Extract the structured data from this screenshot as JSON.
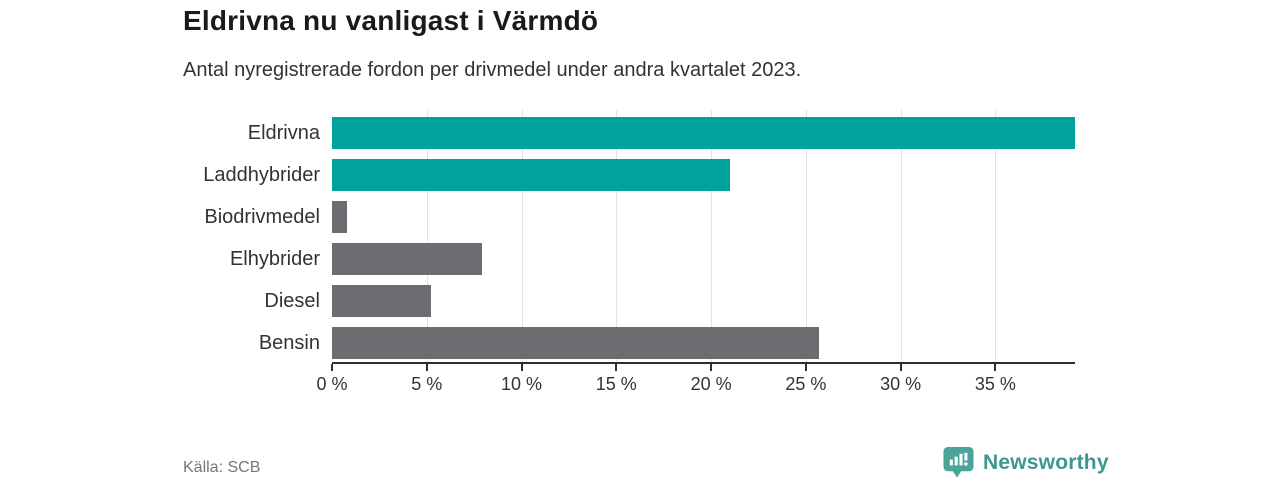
{
  "header": {
    "title": "Eldrivna nu vanligast i Värmdö",
    "subtitle": "Antal nyregistrerade fordon per drivmedel under andra kvartalet 2023."
  },
  "chart_data": {
    "type": "bar",
    "orientation": "horizontal",
    "title": "Eldrivna nu vanligast i Värmdö",
    "subtitle": "Antal nyregistrerade fordon per drivmedel under andra kvartalet 2023.",
    "categories": [
      "Eldrivna",
      "Laddhybrider",
      "Biodrivmedel",
      "Elhybrider",
      "Diesel",
      "Bensin"
    ],
    "values": [
      39.2,
      21.0,
      0.8,
      7.9,
      5.2,
      25.7
    ],
    "unit": "%",
    "bar_colors": [
      "#00a29b",
      "#00a29b",
      "#6c6c71",
      "#6c6c71",
      "#6c6c71",
      "#6c6c71"
    ],
    "xlim": [
      0,
      39.2
    ],
    "x_ticks": [
      0,
      5,
      10,
      15,
      20,
      25,
      30,
      35
    ],
    "x_tick_labels": [
      "0 %",
      "5 %",
      "10 %",
      "15 %",
      "20 %",
      "25 %",
      "30 %",
      "35 %"
    ],
    "grid": "vertical-only",
    "legend": "none"
  },
  "footer": {
    "source": "Källa: SCB",
    "brand": "Newsworthy"
  },
  "colors": {
    "accent_teal": "#00a29b",
    "bar_gray": "#6c6c71",
    "grid": "#e2e2e2",
    "axis": "#2f2f2f",
    "brand_teal": "#3e968c",
    "brand_icon_teal": "#4aa49a"
  }
}
